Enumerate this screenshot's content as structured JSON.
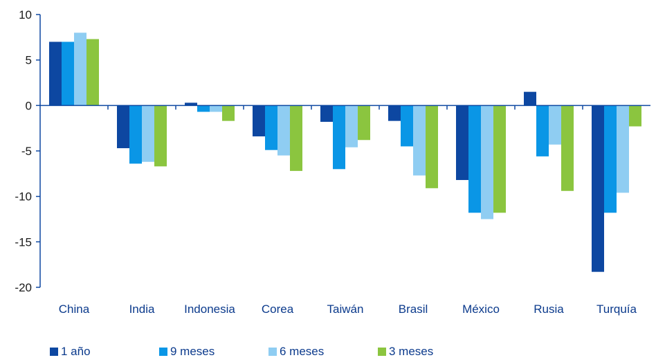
{
  "chart_data": {
    "type": "bar",
    "title": "",
    "xlabel": "",
    "ylabel": "",
    "categories": [
      "China",
      "India",
      "Indonesia",
      "Corea",
      "Taiwán",
      "Brasil",
      "México",
      "Rusia",
      "Turquía"
    ],
    "series": [
      {
        "name": "1 año",
        "color": "#0d47a1",
        "values": [
          7.0,
          -4.7,
          0.3,
          -3.4,
          -1.8,
          -1.7,
          -8.2,
          1.5,
          -18.3
        ]
      },
      {
        "name": "9 meses",
        "color": "#0a96e6",
        "values": [
          7.0,
          -6.4,
          -0.7,
          -4.9,
          -7.0,
          -4.5,
          -11.8,
          -5.6,
          -11.8
        ]
      },
      {
        "name": "6 meses",
        "color": "#8fcdf2",
        "values": [
          8.0,
          -6.2,
          -0.7,
          -5.5,
          -4.6,
          -7.7,
          -12.5,
          -4.3,
          -9.6
        ]
      },
      {
        "name": "3 meses",
        "color": "#8bc53f",
        "values": [
          7.3,
          -6.7,
          -1.7,
          -7.2,
          -3.8,
          -9.1,
          -11.8,
          -9.4,
          -2.3
        ]
      }
    ],
    "ylim": [
      -20,
      10
    ],
    "yticks": [
      10,
      5,
      0,
      -5,
      -10,
      -15,
      -20
    ],
    "grid": false,
    "legend_position": "bottom-left"
  }
}
